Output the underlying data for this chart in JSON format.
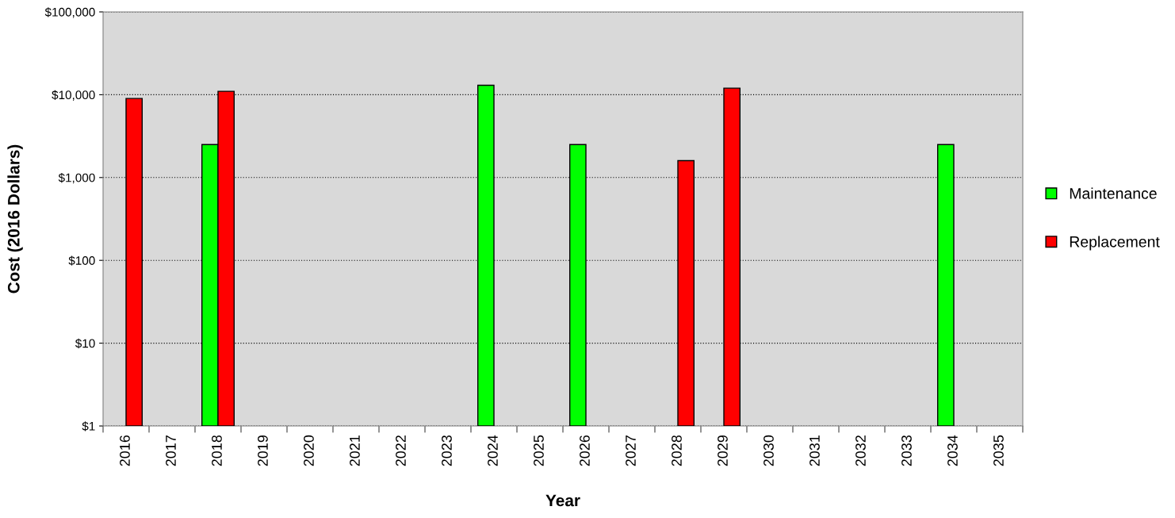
{
  "chart_data": {
    "type": "bar",
    "xlabel": "Year",
    "ylabel": "Cost (2016 Dollars)",
    "categories": [
      "2016",
      "2017",
      "2018",
      "2019",
      "2020",
      "2021",
      "2022",
      "2023",
      "2024",
      "2025",
      "2026",
      "2027",
      "2028",
      "2029",
      "2030",
      "2031",
      "2032",
      "2033",
      "2034",
      "2035"
    ],
    "series": [
      {
        "name": "Maintenance",
        "color": "#00ff00",
        "values": [
          null,
          null,
          2500,
          null,
          null,
          null,
          null,
          null,
          13000,
          null,
          2500,
          null,
          null,
          null,
          null,
          null,
          null,
          null,
          2500,
          null
        ]
      },
      {
        "name": "Replacement",
        "color": "#ff0000",
        "values": [
          9000,
          null,
          11000,
          null,
          null,
          null,
          null,
          null,
          null,
          null,
          null,
          null,
          1600,
          12000,
          null,
          null,
          null,
          null,
          null,
          null
        ]
      }
    ],
    "log": "y",
    "ylim": [
      1,
      100000
    ],
    "yticks": [
      {
        "value": 1,
        "label": "$1"
      },
      {
        "value": 10,
        "label": "$10"
      },
      {
        "value": 100,
        "label": "$100"
      },
      {
        "value": 1000,
        "label": "$1,000"
      },
      {
        "value": 10000,
        "label": "$10,000"
      },
      {
        "value": 100000,
        "label": "$100,000"
      }
    ],
    "grid": "y",
    "legend": "right"
  }
}
